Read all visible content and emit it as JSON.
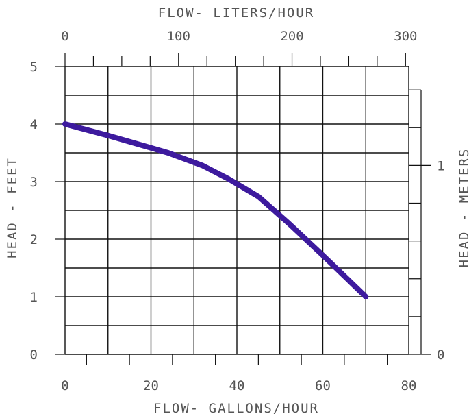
{
  "chart_data": {
    "type": "line",
    "title": "",
    "xlabel": "FLOW- GALLONS/HOUR",
    "ylabel": "HEAD - FEET",
    "secondary_x_label": "FLOW- LITERS/HOUR",
    "secondary_y_label": "HEAD - METERS",
    "xlim": [
      0,
      80
    ],
    "ylim": [
      0,
      5
    ],
    "secondary_xlim_lph": [
      0,
      300
    ],
    "x_ticks": [
      "0",
      "20",
      "40",
      "60",
      "80"
    ],
    "y_ticks": [
      "0",
      "1",
      "2",
      "3",
      "4",
      "5"
    ],
    "secondary_x_ticks": [
      "0",
      "100",
      "200",
      "300"
    ],
    "secondary_y_ticks": [
      "0",
      "1"
    ],
    "grid": true,
    "series": [
      {
        "x": [
          0,
          10,
          18,
          24,
          32,
          38,
          45,
          52,
          60,
          70
        ],
        "y": [
          4.0,
          3.8,
          3.63,
          3.5,
          3.28,
          3.05,
          2.74,
          2.28,
          1.72,
          1.0
        ],
        "color": "#3d1a9e"
      }
    ]
  }
}
